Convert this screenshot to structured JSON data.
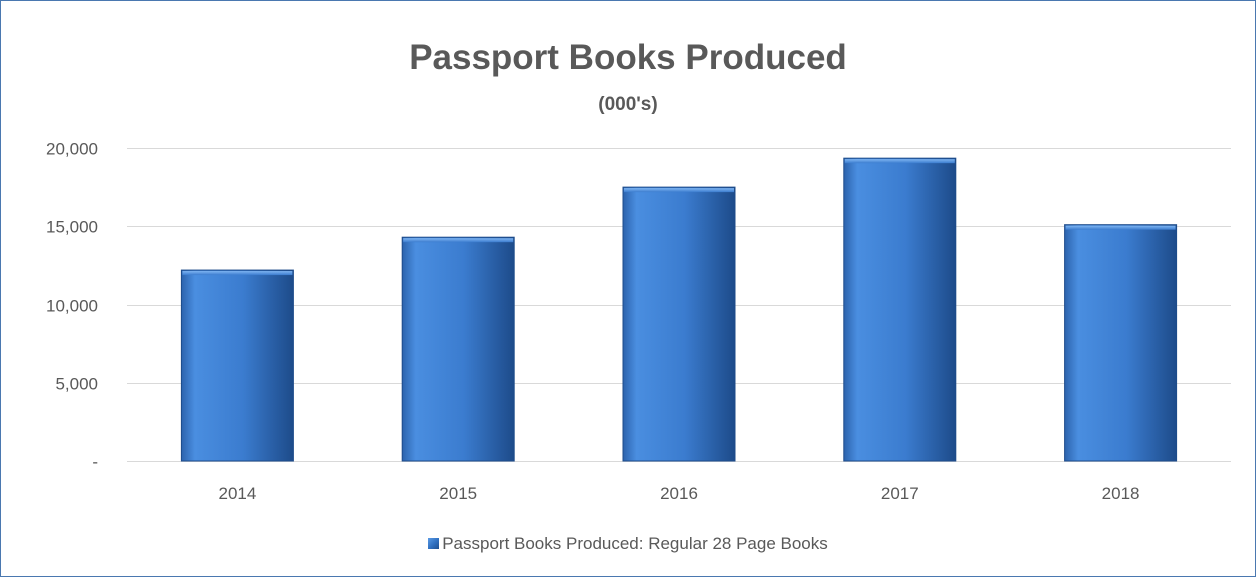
{
  "chart_data": {
    "type": "bar",
    "title": "Passport Books Produced",
    "subtitle": "(000's)",
    "xlabel": "",
    "ylabel": "",
    "categories": [
      "2014",
      "2015",
      "2016",
      "2017",
      "2018"
    ],
    "series": [
      {
        "name": "Passport Books Produced: Regular 28 Page Books",
        "values": [
          12200,
          14300,
          17500,
          19350,
          15100
        ],
        "color": "#3c7fd4"
      }
    ],
    "ylim": [
      0,
      20000
    ],
    "yticks": [
      0,
      5000,
      10000,
      15000,
      20000
    ],
    "ytick_labels": [
      "-",
      "5,000",
      "10,000",
      "15,000",
      "20,000"
    ],
    "grid": true,
    "legend_position": "bottom"
  },
  "colors": {
    "border": "#4a78b0",
    "bar_light": "#5a9be6",
    "bar_dark": "#1f4f8f",
    "gridline": "#d9d9d9",
    "text": "#595959"
  }
}
